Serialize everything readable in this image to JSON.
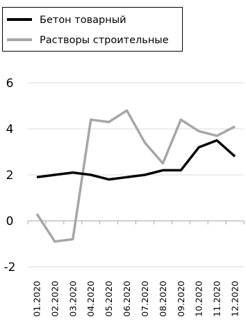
{
  "chart_data": {
    "type": "line",
    "categories": [
      "01.2020",
      "02.2020",
      "03.2020",
      "04.2020",
      "05.2020",
      "06.2020",
      "07.2020",
      "08.2020",
      "09.2020",
      "10.2020",
      "11.2020",
      "12.2020"
    ],
    "series": [
      {
        "name": "Бетон товарный",
        "color": "#000000",
        "values": [
          1.9,
          2.0,
          2.1,
          2.0,
          1.8,
          1.9,
          2.0,
          2.2,
          2.2,
          3.2,
          3.5,
          2.8
        ]
      },
      {
        "name": "Растворы строительные",
        "color": "#a6a6a6",
        "values": [
          0.3,
          -0.9,
          -0.8,
          4.4,
          4.3,
          4.8,
          3.4,
          2.5,
          4.4,
          3.9,
          3.7,
          4.1
        ]
      }
    ],
    "ylim": [
      -2,
      6
    ],
    "yticks": [
      -2,
      0,
      2,
      4,
      6
    ],
    "ytick_labels": [
      "-2",
      "0",
      "2",
      "4",
      "6"
    ],
    "grid": true,
    "legend_position": "top-left",
    "title": "",
    "xlabel": "",
    "ylabel": ""
  }
}
